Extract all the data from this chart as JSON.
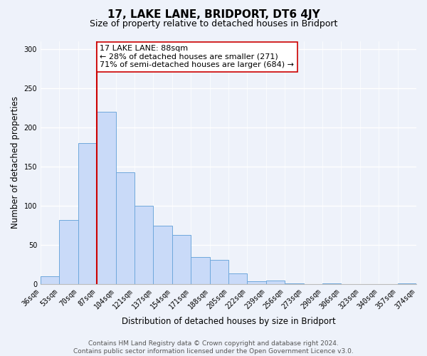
{
  "title": "17, LAKE LANE, BRIDPORT, DT6 4JY",
  "subtitle": "Size of property relative to detached houses in Bridport",
  "xlabel": "Distribution of detached houses by size in Bridport",
  "ylabel": "Number of detached properties",
  "bin_labels": [
    "36sqm",
    "53sqm",
    "70sqm",
    "87sqm",
    "104sqm",
    "121sqm",
    "137sqm",
    "154sqm",
    "171sqm",
    "188sqm",
    "205sqm",
    "222sqm",
    "239sqm",
    "256sqm",
    "273sqm",
    "290sqm",
    "306sqm",
    "323sqm",
    "340sqm",
    "357sqm",
    "374sqm"
  ],
  "bar_values": [
    10,
    82,
    180,
    220,
    143,
    100,
    75,
    63,
    35,
    31,
    14,
    4,
    5,
    1,
    0,
    1,
    0,
    0,
    0,
    1
  ],
  "bar_color": "#c9daf8",
  "bar_edge_color": "#6fa8dc",
  "highlight_line_color": "#cc0000",
  "annotation_text": "17 LAKE LANE: 88sqm\n← 28% of detached houses are smaller (271)\n71% of semi-detached houses are larger (684) →",
  "annotation_box_color": "#ffffff",
  "annotation_box_edge_color": "#cc0000",
  "ylim": [
    0,
    310
  ],
  "yticks": [
    0,
    50,
    100,
    150,
    200,
    250,
    300
  ],
  "footer_line1": "Contains HM Land Registry data © Crown copyright and database right 2024.",
  "footer_line2": "Contains public sector information licensed under the Open Government Licence v3.0.",
  "background_color": "#eef2fa",
  "grid_color": "#ffffff",
  "title_fontsize": 11,
  "subtitle_fontsize": 9,
  "axis_label_fontsize": 8.5,
  "tick_fontsize": 7,
  "annotation_fontsize": 8,
  "footer_fontsize": 6.5
}
